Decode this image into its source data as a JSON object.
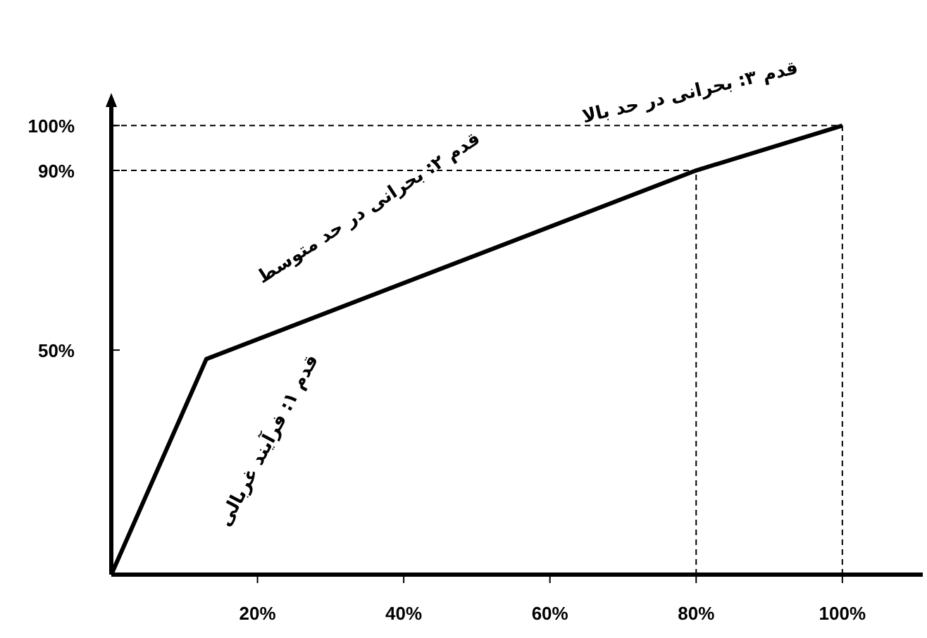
{
  "chart_data": {
    "type": "line",
    "x": [
      0,
      13,
      80,
      100
    ],
    "series": [
      {
        "color": "#000000",
        "values": [
          0,
          48,
          90,
          100
        ]
      }
    ],
    "xlim": [
      0,
      111
    ],
    "ylim": [
      0,
      106
    ],
    "xticks": [
      {
        "value": 20,
        "label": "20%"
      },
      {
        "value": 40,
        "label": "40%"
      },
      {
        "value": 60,
        "label": "60%"
      },
      {
        "value": 80,
        "label": "80%"
      },
      {
        "value": 100,
        "label": "100%"
      }
    ],
    "yticks": [
      {
        "value": 50,
        "label": "50%"
      },
      {
        "value": 90,
        "label": "90%"
      },
      {
        "value": 100,
        "label": "100%"
      }
    ],
    "ref_lines": [
      {
        "axis": "y",
        "value": 90,
        "color": "#000000",
        "line_style": "dashed"
      },
      {
        "axis": "y",
        "value": 100,
        "color": "#000000",
        "line_style": "dashed"
      },
      {
        "axis": "x",
        "value": 80,
        "color": "#000000",
        "line_style": "dashed"
      },
      {
        "axis": "x",
        "value": 100,
        "color": "#000000",
        "line_style": "dashed"
      }
    ],
    "annotations": [
      "قدم ۱: فرآیند غربالی",
      "قدم ۲: بحرانی در حد متوسط",
      "قدم ۳: بحرانی در حد بالا"
    ],
    "grid": false,
    "marker": "none",
    "line_style": "solid"
  }
}
